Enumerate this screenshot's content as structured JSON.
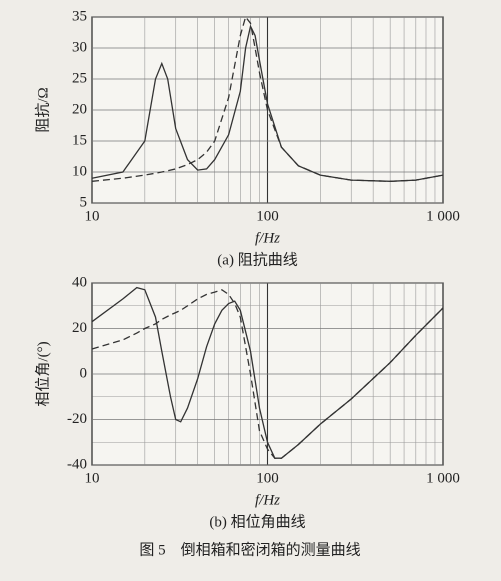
{
  "chart_data": [
    {
      "type": "line",
      "subtitle": "(a) 阻抗曲线",
      "xlabel": "f/Hz",
      "ylabel": "阻抗/Ω",
      "xscale": "log",
      "xlim": [
        10,
        1000
      ],
      "xticks": [
        10,
        100,
        {
          "value": 1000,
          "label": "1 000"
        }
      ],
      "x_minor_ticks": [
        20,
        30,
        40,
        50,
        60,
        70,
        80,
        90,
        200,
        300,
        400,
        500,
        600,
        700,
        800,
        900
      ],
      "ylim": [
        5,
        35
      ],
      "yticks": [
        5,
        10,
        15,
        20,
        25,
        30,
        35
      ],
      "y_minor_ticks": [],
      "grid": true,
      "x": [
        10,
        15,
        20,
        23,
        25,
        27,
        30,
        35,
        40,
        45,
        50,
        60,
        70,
        75,
        80,
        85,
        90,
        100,
        120,
        150,
        200,
        300,
        500,
        700,
        1000
      ],
      "series": [
        {
          "color": "#333333",
          "dash": false,
          "values": [
            9,
            10,
            15,
            25,
            27.5,
            25,
            17,
            12,
            10.3,
            10.5,
            12,
            16,
            23,
            30,
            33.5,
            32,
            28,
            21,
            14,
            11,
            9.5,
            8.7,
            8.5,
            8.7,
            9.5
          ]
        },
        {
          "color": "#333333",
          "dash": true,
          "values": [
            8.5,
            9,
            9.5,
            9.8,
            10,
            10.2,
            10.5,
            11.2,
            12,
            13.2,
            15,
            22,
            32,
            35,
            34,
            30,
            26,
            20,
            14,
            11,
            9.5,
            8.7,
            8.5,
            8.7,
            9.5
          ]
        }
      ]
    },
    {
      "type": "line",
      "subtitle": "(b) 相位角曲线",
      "xlabel": "f/Hz",
      "ylabel": "相位角/(°)",
      "xscale": "log",
      "xlim": [
        10,
        1000
      ],
      "xticks": [
        10,
        100,
        {
          "value": 1000,
          "label": "1 000"
        }
      ],
      "x_minor_ticks": [
        20,
        30,
        40,
        50,
        60,
        70,
        80,
        90,
        200,
        300,
        400,
        500,
        600,
        700,
        800,
        900
      ],
      "ylim": [
        -40,
        40
      ],
      "yticks": [
        -40,
        -20,
        0,
        20,
        40
      ],
      "y_minor_ticks": [
        -30,
        -10,
        10,
        30
      ],
      "grid": true,
      "x": [
        10,
        15,
        18,
        20,
        23,
        25,
        28,
        30,
        32,
        35,
        40,
        45,
        50,
        55,
        60,
        65,
        70,
        80,
        90,
        100,
        110,
        120,
        150,
        200,
        300,
        500,
        700,
        1000
      ],
      "series": [
        {
          "color": "#333333",
          "dash": false,
          "values": [
            23,
            33,
            38,
            37,
            25,
            10,
            -10,
            -20,
            -21,
            -15,
            -2,
            12,
            22,
            28,
            31,
            32,
            28,
            10,
            -15,
            -30,
            -37,
            -37,
            -31,
            -22,
            -11,
            5,
            17,
            29
          ]
        },
        {
          "color": "#333333",
          "dash": true,
          "values": [
            11,
            15,
            18,
            20,
            22,
            24,
            26,
            27,
            28,
            30,
            33,
            35,
            36,
            37,
            35,
            31,
            25,
            0,
            -25,
            -33,
            -37,
            -37,
            -31,
            -22,
            -11,
            5,
            17,
            29
          ]
        }
      ]
    }
  ],
  "figure_caption": "图 5　倒相箱和密闭箱的测量曲线"
}
